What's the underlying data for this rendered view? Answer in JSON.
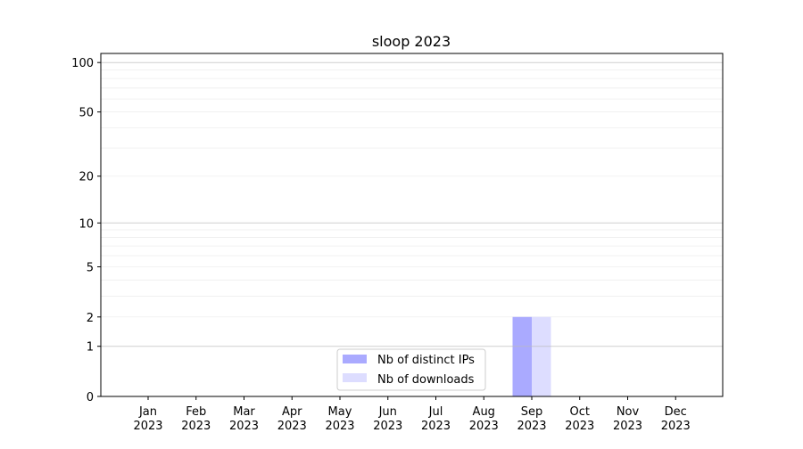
{
  "chart_data": {
    "type": "bar",
    "title": "sloop 2023",
    "xlabel": "",
    "ylabel": "",
    "yscale": "log10(1+y)",
    "ylim": [
      0,
      113
    ],
    "yticks": [
      0,
      1,
      2,
      5,
      10,
      20,
      50,
      100
    ],
    "grid": true,
    "legend_position": "lower-center",
    "categories": [
      "Jan\n2023",
      "Feb\n2023",
      "Mar\n2023",
      "Apr\n2023",
      "May\n2023",
      "Jun\n2023",
      "Jul\n2023",
      "Aug\n2023",
      "Sep\n2023",
      "Oct\n2023",
      "Nov\n2023",
      "Dec\n2023"
    ],
    "category_labels": [
      {
        "month": "Jan",
        "year": "2023"
      },
      {
        "month": "Feb",
        "year": "2023"
      },
      {
        "month": "Mar",
        "year": "2023"
      },
      {
        "month": "Apr",
        "year": "2023"
      },
      {
        "month": "May",
        "year": "2023"
      },
      {
        "month": "Jun",
        "year": "2023"
      },
      {
        "month": "Jul",
        "year": "2023"
      },
      {
        "month": "Aug",
        "year": "2023"
      },
      {
        "month": "Sep",
        "year": "2023"
      },
      {
        "month": "Oct",
        "year": "2023"
      },
      {
        "month": "Nov",
        "year": "2023"
      },
      {
        "month": "Dec",
        "year": "2023"
      }
    ],
    "series": [
      {
        "name": "Nb of distinct IPs",
        "color": "#aaaaff",
        "values": [
          0,
          0,
          0,
          0,
          0,
          0,
          0,
          0,
          2,
          0,
          0,
          0
        ]
      },
      {
        "name": "Nb of downloads",
        "color": "#ddddff",
        "values": [
          0,
          0,
          0,
          0,
          0,
          0,
          0,
          0,
          2,
          0,
          0,
          0
        ]
      }
    ]
  }
}
